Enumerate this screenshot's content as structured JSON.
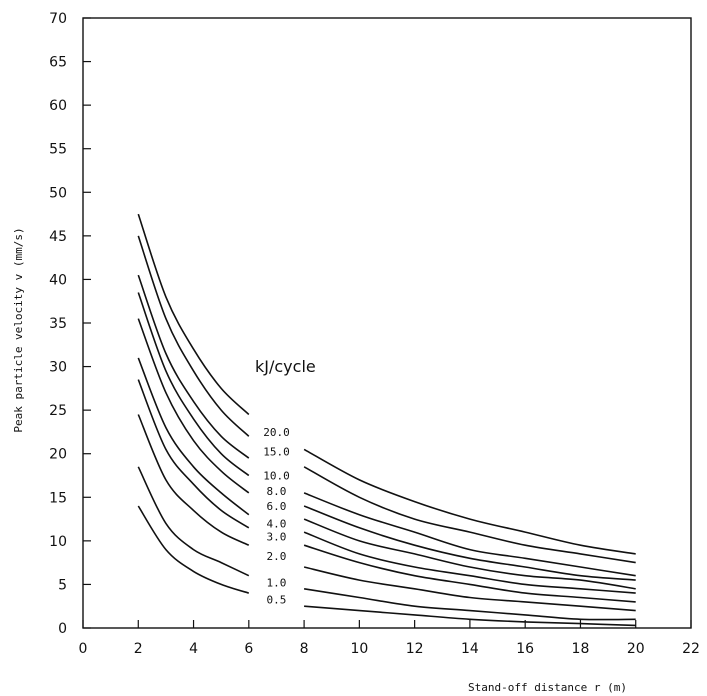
{
  "chart_data": {
    "type": "line",
    "title": "",
    "xlabel": "Stand-off distance r (m)",
    "ylabel": "Peak particle velocity v (mm/s)",
    "xlim": [
      0,
      22
    ],
    "ylim": [
      0,
      70
    ],
    "xticks": [
      0,
      2,
      4,
      6,
      8,
      10,
      12,
      14,
      16,
      18,
      20,
      22
    ],
    "yticks": [
      0,
      5,
      10,
      15,
      20,
      25,
      30,
      35,
      40,
      45,
      50,
      55,
      60,
      65,
      70
    ],
    "legend_title": "kJ/cycle",
    "colors": {
      "line": "#111111",
      "background": "#ffffff"
    },
    "series": [
      {
        "name": "20.0",
        "segments": [
          {
            "x": [
              2,
              3,
              4,
              5,
              6
            ],
            "y": [
              47.5,
              38.0,
              32.0,
              27.5,
              24.5
            ]
          },
          {
            "x": [
              8,
              10,
              12,
              14,
              16,
              18,
              20
            ],
            "y": [
              20.5,
              17.0,
              14.5,
              12.5,
              11.0,
              9.5,
              8.5
            ]
          }
        ]
      },
      {
        "name": "15.0",
        "segments": [
          {
            "x": [
              2,
              3,
              4,
              5,
              6
            ],
            "y": [
              45.0,
              35.5,
              29.5,
              25.0,
              22.0
            ]
          },
          {
            "x": [
              8,
              10,
              12,
              14,
              16,
              18,
              20
            ],
            "y": [
              18.5,
              15.0,
              12.5,
              11.0,
              9.5,
              8.5,
              7.5
            ]
          }
        ]
      },
      {
        "name": "10.0",
        "segments": [
          {
            "x": [
              2,
              3,
              4,
              5,
              6
            ],
            "y": [
              40.5,
              31.5,
              26.0,
              22.0,
              19.5
            ]
          },
          {
            "x": [
              8,
              10,
              12,
              14,
              16,
              18,
              20
            ],
            "y": [
              15.5,
              13.0,
              11.0,
              9.0,
              8.0,
              7.0,
              6.0
            ]
          }
        ]
      },
      {
        "name": "8.0",
        "segments": [
          {
            "x": [
              2,
              3,
              4,
              5,
              6
            ],
            "y": [
              38.5,
              29.5,
              24.0,
              20.0,
              17.5
            ]
          },
          {
            "x": [
              8,
              10,
              12,
              14,
              16,
              18,
              20
            ],
            "y": [
              14.0,
              11.5,
              9.5,
              8.0,
              7.0,
              6.0,
              5.5
            ]
          }
        ]
      },
      {
        "name": "6.0",
        "segments": [
          {
            "x": [
              2,
              3,
              4,
              5,
              6
            ],
            "y": [
              35.5,
              27.0,
              21.5,
              18.0,
              15.5
            ]
          },
          {
            "x": [
              8,
              10,
              12,
              14,
              16,
              18,
              20
            ],
            "y": [
              12.5,
              10.0,
              8.5,
              7.0,
              6.0,
              5.5,
              4.5
            ]
          }
        ]
      },
      {
        "name": "4.0",
        "segments": [
          {
            "x": [
              2,
              3,
              4,
              5,
              6
            ],
            "y": [
              31.0,
              23.0,
              18.5,
              15.5,
              13.0
            ]
          },
          {
            "x": [
              8,
              10,
              12,
              14,
              16,
              18,
              20
            ],
            "y": [
              11.0,
              8.5,
              7.0,
              6.0,
              5.0,
              4.5,
              4.0
            ]
          }
        ]
      },
      {
        "name": "3.0",
        "segments": [
          {
            "x": [
              2,
              3,
              4,
              5,
              6
            ],
            "y": [
              28.5,
              20.5,
              16.5,
              13.5,
              11.5
            ]
          },
          {
            "x": [
              8,
              10,
              12,
              14,
              16,
              18,
              20
            ],
            "y": [
              9.5,
              7.5,
              6.0,
              5.0,
              4.0,
              3.5,
              3.0
            ]
          }
        ]
      },
      {
        "name": "2.0",
        "segments": [
          {
            "x": [
              2,
              3,
              4,
              5,
              6
            ],
            "y": [
              24.5,
              17.0,
              13.5,
              11.0,
              9.5
            ]
          },
          {
            "x": [
              8,
              10,
              12,
              14,
              16,
              18,
              20
            ],
            "y": [
              7.0,
              5.5,
              4.5,
              3.5,
              3.0,
              2.5,
              2.0
            ]
          }
        ]
      },
      {
        "name": "1.0",
        "segments": [
          {
            "x": [
              2,
              3,
              4,
              5,
              6
            ],
            "y": [
              18.5,
              12.0,
              9.0,
              7.5,
              6.0
            ]
          },
          {
            "x": [
              8,
              10,
              12,
              14,
              16,
              18,
              20
            ],
            "y": [
              4.5,
              3.5,
              2.5,
              2.0,
              1.5,
              1.0,
              1.0
            ]
          }
        ]
      },
      {
        "name": "0.5",
        "segments": [
          {
            "x": [
              2,
              3,
              4,
              5,
              6
            ],
            "y": [
              14.0,
              9.0,
              6.5,
              5.0,
              4.0
            ]
          },
          {
            "x": [
              8,
              10,
              12,
              14,
              16,
              18,
              20
            ],
            "y": [
              2.5,
              2.0,
              1.5,
              1.0,
              0.7,
              0.5,
              0.3
            ]
          }
        ]
      }
    ]
  }
}
